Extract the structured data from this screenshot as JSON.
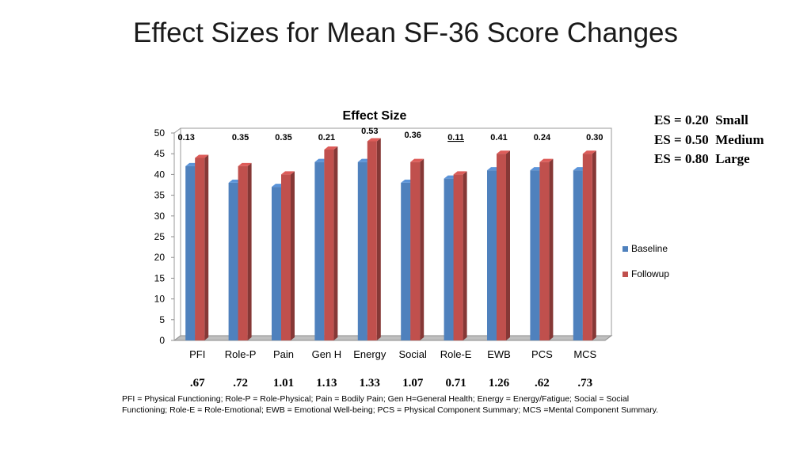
{
  "slide_title": "Effect Sizes for Mean SF-36 Score Changes",
  "chart_data": {
    "type": "bar",
    "title": "Effect Size",
    "categories": [
      "PFI",
      "Role-P",
      "Pain",
      "Gen H",
      "Energy",
      "Social",
      "Role-E",
      "EWB",
      "PCS",
      "MCS"
    ],
    "series": [
      {
        "name": "Baseline",
        "color": "#4f81bd",
        "values": [
          42,
          38,
          37,
          43,
          43,
          38,
          39,
          41,
          41,
          41
        ]
      },
      {
        "name": "Followup",
        "color": "#c0504d",
        "values": [
          44,
          42,
          40,
          46,
          48,
          43,
          40,
          45,
          43,
          45
        ]
      }
    ],
    "top_labels": [
      "0.13",
      "0.35",
      "0.35",
      "0.21",
      "0.53",
      "0.36",
      "0.11",
      "0.41",
      "0.24",
      "0.30"
    ],
    "bottom_values": [
      ".67",
      ".72",
      "1.01",
      "1.13",
      "1.33",
      "1.07",
      "0.71",
      "1.26",
      ".62",
      ".73"
    ],
    "ylim": [
      0,
      50
    ],
    "yticks": [
      0,
      5,
      10,
      15,
      20,
      25,
      30,
      35,
      40,
      45,
      50
    ],
    "xlabel": "",
    "ylabel": "",
    "grid": false,
    "legend_position": "right"
  },
  "es_legend": [
    "ES = 0.20  Small",
    "ES = 0.50  Medium",
    "ES = 0.80  Large"
  ],
  "footnote": "PFI = Physical Functioning; Role-P = Role-Physical; Pain = Bodily Pain; Gen H=General Health; Energy = Energy/Fatigue; Social = Social Functioning; Role-E = Role-Emotional; EWB = Emotional Well-being; PCS = Physical Component Summary; MCS =Mental Component Summary."
}
